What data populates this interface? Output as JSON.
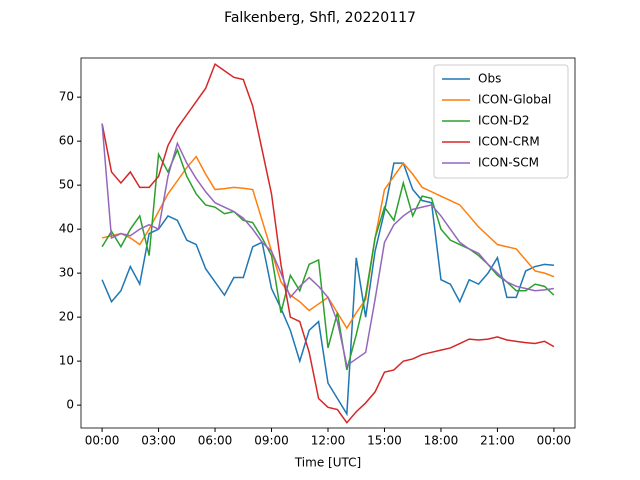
{
  "chart_data": {
    "type": "line",
    "title": "Falkenberg, Shfl, 20220117",
    "xlabel": "Time [UTC]",
    "x": [
      0,
      0.5,
      1,
      1.5,
      2,
      2.5,
      3,
      3.5,
      4,
      4.5,
      5,
      5.5,
      6,
      6.5,
      7,
      7.5,
      8,
      8.5,
      9,
      9.5,
      10,
      10.5,
      11,
      11.5,
      12,
      12.5,
      13,
      13.5,
      14,
      14.5,
      15,
      15.5,
      16,
      16.5,
      17,
      17.5,
      18,
      18.5,
      19,
      19.5,
      20,
      20.5,
      21,
      21.5,
      22,
      22.5,
      23,
      23.5,
      24
    ],
    "xlim": [
      -1.12,
      25.12
    ],
    "xticks": [
      {
        "value": 0,
        "label": "00:00"
      },
      {
        "value": 3,
        "label": "03:00"
      },
      {
        "value": 6,
        "label": "06:00"
      },
      {
        "value": 9,
        "label": "09:00"
      },
      {
        "value": 12,
        "label": "12:00"
      },
      {
        "value": 15,
        "label": "15:00"
      },
      {
        "value": 18,
        "label": "18:00"
      },
      {
        "value": 21,
        "label": "21:00"
      },
      {
        "value": 24,
        "label": "00:00"
      }
    ],
    "ylim": [
      -5.2,
      78.9
    ],
    "yticks": [
      0,
      10,
      20,
      30,
      40,
      50,
      60,
      70
    ],
    "legend": "upper right",
    "series": [
      {
        "name": "Obs",
        "color": "#1f77b4",
        "values": [
          28.5,
          23.5,
          26,
          31.5,
          27.5,
          39,
          40,
          43,
          42,
          37.5,
          36.5,
          31,
          28,
          25,
          29,
          29,
          36,
          37,
          26.5,
          22,
          17,
          10,
          17,
          19,
          5,
          1.5,
          -2,
          33.5,
          20,
          35,
          44,
          55,
          55,
          49,
          46.5,
          46,
          28.5,
          27.5,
          23.5,
          28.5,
          27.5,
          30,
          33.5,
          24.5,
          24.5,
          30.5,
          31.5,
          32,
          31.8
        ]
      },
      {
        "name": "ICON-Global",
        "color": "#ff7f0e",
        "values": [
          38,
          38.5,
          39,
          38,
          36.5,
          40,
          44,
          48,
          51,
          54,
          56.5,
          52.5,
          49,
          49.2,
          49.5,
          49.3,
          49,
          42,
          35,
          28,
          25,
          23.5,
          21.5,
          23,
          24.5,
          21,
          17.5,
          21,
          24,
          38,
          49,
          52,
          55,
          52.5,
          49.5,
          48.5,
          47.5,
          46.5,
          45.5,
          43,
          40.5,
          38.5,
          36.5,
          36,
          35.5,
          33,
          30.5,
          30,
          29.2
        ]
      },
      {
        "name": "ICON-D2",
        "color": "#2ca02c",
        "values": [
          36,
          39.5,
          36,
          40,
          43,
          34,
          57,
          53,
          58,
          52,
          48,
          45.5,
          45,
          43.5,
          44,
          42,
          41.5,
          38,
          34,
          21,
          29.5,
          26,
          32,
          33,
          13,
          21,
          8,
          16,
          25,
          38,
          45,
          42,
          50.5,
          43,
          47.5,
          47,
          40,
          37.5,
          36.5,
          35.5,
          34,
          32,
          29.5,
          28,
          26,
          26,
          27.5,
          27,
          25
        ]
      },
      {
        "name": "ICON-CRM",
        "color": "#d62728",
        "values": [
          64,
          53,
          50.5,
          53,
          49.5,
          49.5,
          52,
          59,
          63,
          66,
          69,
          72,
          77.5,
          76,
          74.5,
          74,
          68,
          58,
          48,
          32,
          20,
          19,
          12,
          1.5,
          -0.5,
          -1,
          -4,
          -1.5,
          0.5,
          3,
          7.5,
          8,
          10,
          10.5,
          11.5,
          12,
          12.5,
          13,
          14,
          15,
          14.8,
          15,
          15.5,
          14.8,
          14.5,
          14.2,
          14,
          14.5,
          13.3
        ]
      },
      {
        "name": "ICON-SCM",
        "color": "#9467bd",
        "values": [
          64,
          38,
          39,
          38.5,
          40,
          41,
          40,
          52,
          59.5,
          55,
          51.5,
          48.5,
          46,
          45,
          44,
          42.5,
          40,
          37,
          35,
          30,
          24.5,
          27,
          29,
          27,
          24.5,
          19,
          9,
          10.5,
          12,
          24,
          37,
          41,
          43,
          44.5,
          45,
          45.5,
          43,
          40,
          37,
          35.5,
          34.5,
          32,
          30,
          28,
          27,
          26.5,
          26,
          26.2,
          26.5
        ]
      }
    ]
  }
}
